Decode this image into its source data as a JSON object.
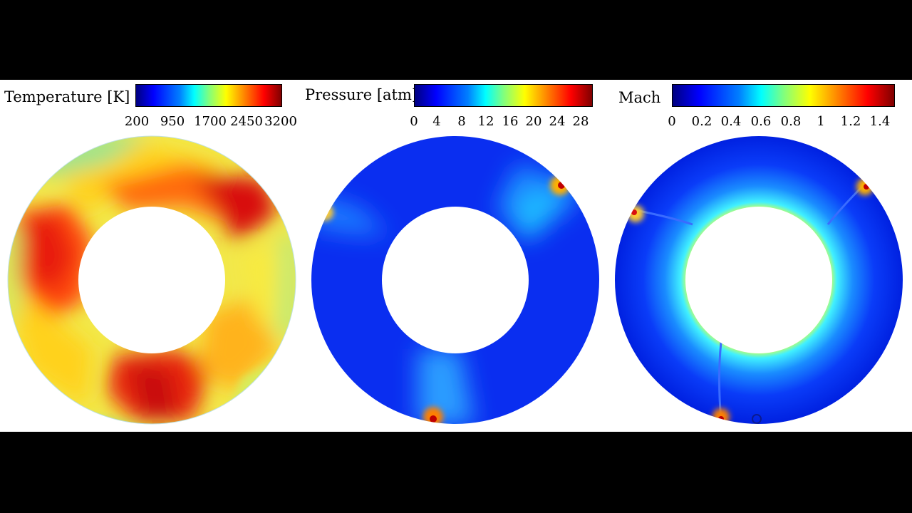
{
  "colorbars": [
    {
      "title": "Temperature [K]",
      "ticks": [
        "200",
        "950",
        "1700",
        "2450",
        "3200"
      ]
    },
    {
      "title": "Pressure [atm]",
      "ticks": [
        "0",
        "4",
        "8",
        "12",
        "16",
        "20",
        "24",
        "28"
      ]
    },
    {
      "title": "Mach",
      "ticks": [
        "0",
        "0.2",
        "0.4",
        "0.6",
        "0.8",
        "1",
        "1.2",
        "1.4"
      ]
    }
  ],
  "colormap": "jet"
}
